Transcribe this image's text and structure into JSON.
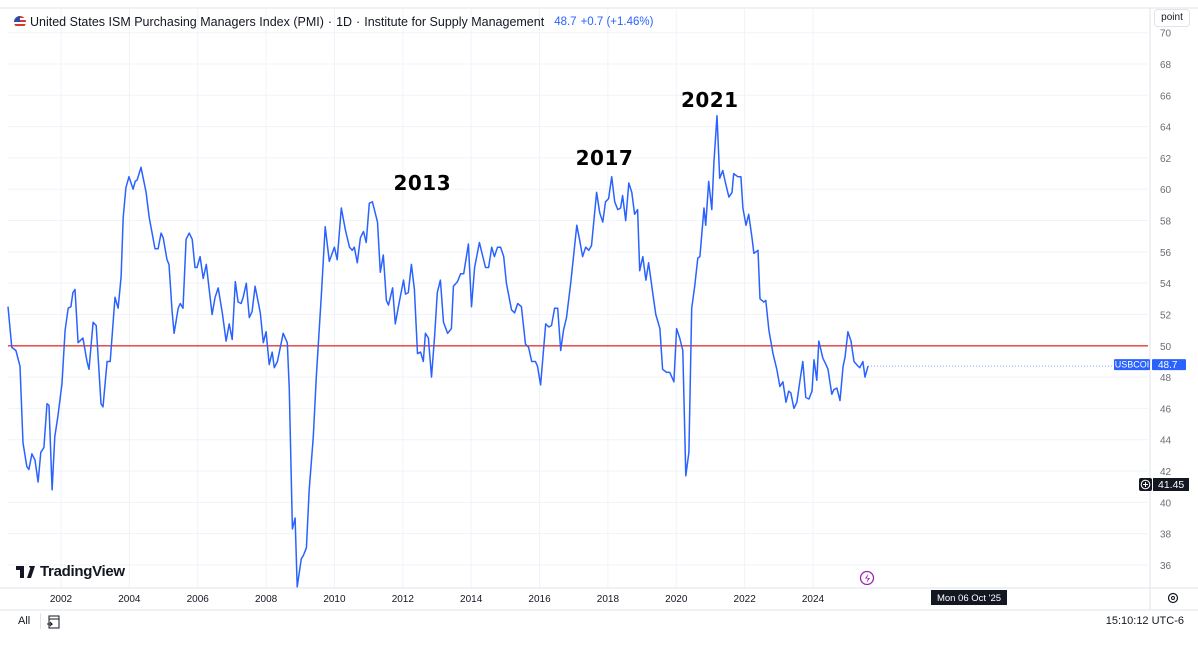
{
  "header": {
    "title": "United States ISM Purchasing Managers Index (PMI)",
    "interval": "1D",
    "source": "Institute for Supply Management",
    "separator": "·",
    "value": "48.7",
    "change": "+0.7 (+1.46%)",
    "flag_icon": "us-flag-icon"
  },
  "scale_button": "point",
  "logo": "TradingView",
  "bottom_bar": {
    "range_all": "All",
    "date_range_icon": "calendar-goto-icon",
    "clock": "15:10:12 UTC-6"
  },
  "chart_data": {
    "type": "line",
    "xlim": [
      2000.45,
      2033.8
    ],
    "ylim": [
      34.7,
      70.0
    ],
    "grid": true,
    "x_ticks": [
      "2002",
      "2004",
      "2006",
      "2008",
      "2010",
      "2012",
      "2014",
      "2016",
      "2018",
      "2020",
      "2022",
      "2024"
    ],
    "y_ticks": [
      "36",
      "38",
      "40",
      "42",
      "44",
      "46",
      "48",
      "50",
      "52",
      "54",
      "56",
      "58",
      "60",
      "62",
      "64",
      "66",
      "68",
      "70"
    ],
    "reference_line": {
      "value": 50,
      "color": "#e53935"
    },
    "series": [
      {
        "name": "USBCOI",
        "color": "#2962ff",
        "last_value": "48.7",
        "points": [
          [
            2000.45,
            52.5
          ],
          [
            2000.56,
            49.9
          ],
          [
            2000.68,
            49.7
          ],
          [
            2000.8,
            48.7
          ],
          [
            2000.89,
            43.8
          ],
          [
            2001.0,
            42.3
          ],
          [
            2001.06,
            42.1
          ],
          [
            2001.15,
            43.1
          ],
          [
            2001.24,
            42.7
          ],
          [
            2001.33,
            41.3
          ],
          [
            2001.41,
            43.2
          ],
          [
            2001.5,
            43.5
          ],
          [
            2001.59,
            46.3
          ],
          [
            2001.65,
            46.2
          ],
          [
            2001.74,
            40.8
          ],
          [
            2001.82,
            44.2
          ],
          [
            2001.91,
            45.5
          ],
          [
            2002.03,
            47.6
          ],
          [
            2002.12,
            51.0
          ],
          [
            2002.21,
            52.4
          ],
          [
            2002.29,
            52.5
          ],
          [
            2002.35,
            53.4
          ],
          [
            2002.41,
            53.6
          ],
          [
            2002.5,
            50.2
          ],
          [
            2002.64,
            50.5
          ],
          [
            2002.76,
            49.0
          ],
          [
            2002.82,
            48.5
          ],
          [
            2002.94,
            51.5
          ],
          [
            2003.03,
            51.3
          ],
          [
            2003.17,
            46.3
          ],
          [
            2003.23,
            46.1
          ],
          [
            2003.35,
            49.0
          ],
          [
            2003.44,
            49.0
          ],
          [
            2003.58,
            53.1
          ],
          [
            2003.67,
            52.4
          ],
          [
            2003.76,
            54.4
          ],
          [
            2003.82,
            58.2
          ],
          [
            2003.9,
            60.1
          ],
          [
            2003.99,
            60.8
          ],
          [
            2004.11,
            60.0
          ],
          [
            2004.17,
            60.5
          ],
          [
            2004.23,
            60.6
          ],
          [
            2004.34,
            61.4
          ],
          [
            2004.49,
            59.8
          ],
          [
            2004.58,
            58.2
          ],
          [
            2004.75,
            56.2
          ],
          [
            2004.84,
            56.2
          ],
          [
            2004.93,
            57.2
          ],
          [
            2004.99,
            56.9
          ],
          [
            2005.1,
            55.5
          ],
          [
            2005.16,
            55.2
          ],
          [
            2005.25,
            52.2
          ],
          [
            2005.31,
            50.8
          ],
          [
            2005.43,
            52.4
          ],
          [
            2005.49,
            52.7
          ],
          [
            2005.57,
            52.4
          ],
          [
            2005.66,
            56.8
          ],
          [
            2005.75,
            57.2
          ],
          [
            2005.84,
            56.8
          ],
          [
            2005.92,
            55.0
          ],
          [
            2005.98,
            55.0
          ],
          [
            2006.07,
            55.7
          ],
          [
            2006.16,
            54.3
          ],
          [
            2006.25,
            55.2
          ],
          [
            2006.42,
            52.0
          ],
          [
            2006.51,
            53.1
          ],
          [
            2006.6,
            53.7
          ],
          [
            2006.72,
            52.1
          ],
          [
            2006.83,
            50.3
          ],
          [
            2006.92,
            51.4
          ],
          [
            2007.01,
            50.4
          ],
          [
            2007.1,
            54.1
          ],
          [
            2007.18,
            52.8
          ],
          [
            2007.27,
            52.7
          ],
          [
            2007.33,
            53.1
          ],
          [
            2007.42,
            54.0
          ],
          [
            2007.51,
            51.8
          ],
          [
            2007.59,
            52.2
          ],
          [
            2007.68,
            53.8
          ],
          [
            2007.83,
            52.1
          ],
          [
            2007.92,
            50.2
          ],
          [
            2008.0,
            50.9
          ],
          [
            2008.09,
            48.8
          ],
          [
            2008.18,
            49.6
          ],
          [
            2008.24,
            48.6
          ],
          [
            2008.33,
            49.0
          ],
          [
            2008.5,
            50.8
          ],
          [
            2008.62,
            50.2
          ],
          [
            2008.68,
            47.2
          ],
          [
            2008.77,
            38.3
          ],
          [
            2008.85,
            39.0
          ],
          [
            2008.91,
            34.6
          ],
          [
            2009.03,
            36.4
          ],
          [
            2009.09,
            36.6
          ],
          [
            2009.18,
            37.1
          ],
          [
            2009.26,
            40.8
          ],
          [
            2009.38,
            44.2
          ],
          [
            2009.47,
            48.0
          ],
          [
            2009.62,
            53.4
          ],
          [
            2009.73,
            57.6
          ],
          [
            2009.85,
            55.4
          ],
          [
            2010.0,
            56.3
          ],
          [
            2010.08,
            55.5
          ],
          [
            2010.2,
            58.8
          ],
          [
            2010.32,
            57.4
          ],
          [
            2010.44,
            56.3
          ],
          [
            2010.52,
            56.1
          ],
          [
            2010.58,
            56.3
          ],
          [
            2010.67,
            55.3
          ],
          [
            2010.76,
            56.9
          ],
          [
            2010.85,
            57.3
          ],
          [
            2010.93,
            56.6
          ],
          [
            2011.02,
            59.1
          ],
          [
            2011.11,
            59.2
          ],
          [
            2011.26,
            57.9
          ],
          [
            2011.34,
            54.7
          ],
          [
            2011.43,
            55.8
          ],
          [
            2011.52,
            52.9
          ],
          [
            2011.58,
            52.6
          ],
          [
            2011.7,
            53.7
          ],
          [
            2011.78,
            51.4
          ],
          [
            2011.87,
            52.5
          ],
          [
            2012.02,
            54.2
          ],
          [
            2012.08,
            53.3
          ],
          [
            2012.16,
            53.4
          ],
          [
            2012.25,
            55.2
          ],
          [
            2012.34,
            53.6
          ],
          [
            2012.43,
            49.5
          ],
          [
            2012.52,
            49.6
          ],
          [
            2012.6,
            49.0
          ],
          [
            2012.66,
            50.8
          ],
          [
            2012.75,
            50.5
          ],
          [
            2012.84,
            48.0
          ],
          [
            2012.93,
            50.6
          ],
          [
            2013.01,
            53.4
          ],
          [
            2013.1,
            54.2
          ],
          [
            2013.19,
            51.5
          ],
          [
            2013.31,
            50.8
          ],
          [
            2013.42,
            51.1
          ],
          [
            2013.48,
            53.8
          ],
          [
            2013.6,
            54.1
          ],
          [
            2013.69,
            54.6
          ],
          [
            2013.78,
            54.6
          ],
          [
            2013.92,
            56.5
          ],
          [
            2014.01,
            52.5
          ],
          [
            2014.1,
            55.0
          ],
          [
            2014.24,
            56.6
          ],
          [
            2014.42,
            55.0
          ],
          [
            2014.51,
            55.0
          ],
          [
            2014.6,
            56.3
          ],
          [
            2014.68,
            55.7
          ],
          [
            2014.77,
            56.3
          ],
          [
            2014.86,
            56.3
          ],
          [
            2014.95,
            55.7
          ],
          [
            2015.03,
            54.0
          ],
          [
            2015.18,
            52.3
          ],
          [
            2015.27,
            52.1
          ],
          [
            2015.36,
            52.7
          ],
          [
            2015.47,
            52.5
          ],
          [
            2015.59,
            50.1
          ],
          [
            2015.68,
            49.9
          ],
          [
            2015.77,
            49.0
          ],
          [
            2015.88,
            49.0
          ],
          [
            2015.94,
            48.7
          ],
          [
            2016.03,
            47.5
          ],
          [
            2016.18,
            51.4
          ],
          [
            2016.27,
            51.2
          ],
          [
            2016.35,
            51.3
          ],
          [
            2016.44,
            52.4
          ],
          [
            2016.53,
            52.4
          ],
          [
            2016.62,
            49.7
          ],
          [
            2016.7,
            51.0
          ],
          [
            2016.79,
            51.8
          ],
          [
            2016.91,
            54.0
          ],
          [
            2017.09,
            57.7
          ],
          [
            2017.17,
            56.8
          ],
          [
            2017.26,
            55.7
          ],
          [
            2017.35,
            56.3
          ],
          [
            2017.44,
            56.1
          ],
          [
            2017.52,
            56.4
          ],
          [
            2017.67,
            59.8
          ],
          [
            2017.76,
            58.5
          ],
          [
            2017.85,
            57.9
          ],
          [
            2017.93,
            59.2
          ],
          [
            2018.02,
            59.4
          ],
          [
            2018.11,
            60.8
          ],
          [
            2018.2,
            59.2
          ],
          [
            2018.29,
            58.7
          ],
          [
            2018.37,
            58.8
          ],
          [
            2018.43,
            59.6
          ],
          [
            2018.52,
            58.0
          ],
          [
            2018.61,
            60.4
          ],
          [
            2018.7,
            59.8
          ],
          [
            2018.78,
            58.4
          ],
          [
            2018.87,
            58.7
          ],
          [
            2018.93,
            54.8
          ],
          [
            2019.02,
            55.7
          ],
          [
            2019.11,
            54.2
          ],
          [
            2019.19,
            55.3
          ],
          [
            2019.31,
            53.4
          ],
          [
            2019.4,
            52.0
          ],
          [
            2019.52,
            51.1
          ],
          [
            2019.6,
            48.5
          ],
          [
            2019.72,
            48.3
          ],
          [
            2019.81,
            48.3
          ],
          [
            2019.93,
            47.7
          ],
          [
            2020.01,
            51.1
          ],
          [
            2020.1,
            50.5
          ],
          [
            2020.19,
            49.7
          ],
          [
            2020.28,
            41.7
          ],
          [
            2020.37,
            43.2
          ],
          [
            2020.45,
            52.4
          ],
          [
            2020.54,
            53.8
          ],
          [
            2020.63,
            55.6
          ],
          [
            2020.69,
            55.7
          ],
          [
            2020.81,
            58.8
          ],
          [
            2020.86,
            57.7
          ],
          [
            2020.95,
            60.5
          ],
          [
            2021.04,
            58.7
          ],
          [
            2021.1,
            61.7
          ],
          [
            2021.19,
            64.7
          ],
          [
            2021.27,
            60.7
          ],
          [
            2021.36,
            61.2
          ],
          [
            2021.42,
            60.6
          ],
          [
            2021.54,
            59.5
          ],
          [
            2021.63,
            59.8
          ],
          [
            2021.68,
            61.0
          ],
          [
            2021.8,
            60.8
          ],
          [
            2021.89,
            60.8
          ],
          [
            2021.95,
            58.8
          ],
          [
            2022.04,
            57.7
          ],
          [
            2022.12,
            58.4
          ],
          [
            2022.21,
            57.0
          ],
          [
            2022.27,
            55.9
          ],
          [
            2022.39,
            56.1
          ],
          [
            2022.45,
            53.0
          ],
          [
            2022.56,
            52.8
          ],
          [
            2022.62,
            52.9
          ],
          [
            2022.71,
            51.0
          ],
          [
            2022.83,
            49.5
          ],
          [
            2022.94,
            48.5
          ],
          [
            2023.03,
            47.4
          ],
          [
            2023.12,
            47.7
          ],
          [
            2023.21,
            46.4
          ],
          [
            2023.29,
            47.1
          ],
          [
            2023.35,
            47.0
          ],
          [
            2023.44,
            46.0
          ],
          [
            2023.53,
            46.4
          ],
          [
            2023.62,
            47.8
          ],
          [
            2023.7,
            49.0
          ],
          [
            2023.79,
            46.7
          ],
          [
            2023.88,
            46.6
          ],
          [
            2023.97,
            47.1
          ],
          [
            2024.03,
            49.1
          ],
          [
            2024.11,
            47.8
          ],
          [
            2024.17,
            50.3
          ],
          [
            2024.29,
            49.2
          ],
          [
            2024.38,
            48.8
          ],
          [
            2024.44,
            48.5
          ],
          [
            2024.55,
            46.9
          ],
          [
            2024.61,
            47.2
          ],
          [
            2024.7,
            47.3
          ],
          [
            2024.79,
            46.5
          ],
          [
            2024.88,
            48.7
          ],
          [
            2024.94,
            49.3
          ],
          [
            2025.02,
            50.9
          ],
          [
            2025.11,
            50.3
          ],
          [
            2025.2,
            49.0
          ],
          [
            2025.32,
            48.7
          ],
          [
            2025.37,
            48.6
          ],
          [
            2025.46,
            49.0
          ],
          [
            2025.52,
            48.0
          ],
          [
            2025.61,
            48.7
          ]
        ]
      }
    ],
    "annotations": [
      {
        "text": "2013",
        "x": 2012.57,
        "y": 60.4
      },
      {
        "text": "2017",
        "x": 2017.9,
        "y": 62.0
      },
      {
        "text": "2021",
        "x": 2020.98,
        "y": 65.7
      }
    ],
    "crosshair_price": "41.45",
    "crosshair_date": "Mon 06 Oct '25",
    "crosshair_icon": "add-plus-icon",
    "event_icon": "lightning-icon",
    "settings_icon": "settings-icon"
  }
}
